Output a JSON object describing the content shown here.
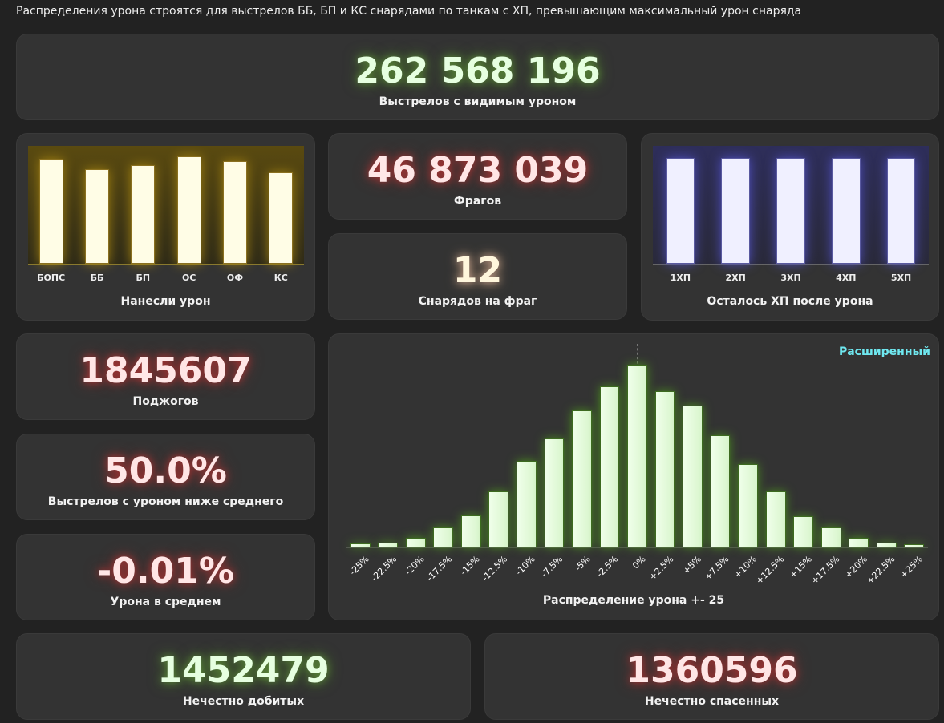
{
  "header": "Распределения урона строятся для выстрелов ББ, БП и КС снарядами по танкам с ХП, превышающим максимальный урон снаряда",
  "shots": {
    "value": "262 568 196",
    "label": "Выстрелов с видимым уроном"
  },
  "frags": {
    "value": "46 873 039",
    "label": "Фрагов"
  },
  "shells_per_frag": {
    "value": "12",
    "label": "Снарядов на фраг"
  },
  "fires": {
    "value": "1845607",
    "label": "Поджогов"
  },
  "below_avg": {
    "value": "50.0%",
    "label": "Выстрелов с уроном ниже среднего"
  },
  "avg_damage": {
    "value": "-0.01%",
    "label": "Урона в среднем"
  },
  "unfair_killed": {
    "value": "1452479",
    "label": "Нечестно добитых"
  },
  "unfair_saved": {
    "value": "1360596",
    "label": "Нечестно спасенных"
  },
  "colors": {
    "yellow": "#fffde6",
    "blue": "#f0f0ff",
    "green": "#e6ffe0",
    "cyan": "#6fe8f0"
  },
  "chart_data": [
    {
      "type": "bar",
      "title": "Нанесли урон",
      "categories": [
        "БОПС",
        "ББ",
        "БП",
        "ОС",
        "ОФ",
        "КС"
      ],
      "values": [
        132,
        119,
        124,
        135,
        129,
        115
      ]
    },
    {
      "type": "bar",
      "title": "Осталось ХП после урона",
      "categories": [
        "1ХП",
        "2ХП",
        "3ХП",
        "4ХП",
        "5ХП"
      ],
      "values": [
        100,
        100,
        100,
        100,
        100
      ]
    },
    {
      "type": "bar",
      "title": "Распределение урона +- 25",
      "mode_link": "Расширенный",
      "categories": [
        "-25%",
        "-22.5%",
        "-20%",
        "-17.5%",
        "-15%",
        "-12.5%",
        "-10%",
        "-7.5%",
        "-5%",
        "-2.5%",
        "0%",
        "+2.5%",
        "+5%",
        "+7.5%",
        "+10%",
        "+12.5%",
        "+15%",
        "+17.5%",
        "+20%",
        "+22.5%",
        "+25%"
      ],
      "values": [
        5,
        6,
        12,
        25,
        40,
        70,
        108,
        137,
        172,
        202,
        229,
        196,
        178,
        141,
        104,
        70,
        39,
        25,
        12,
        6,
        4
      ]
    }
  ]
}
